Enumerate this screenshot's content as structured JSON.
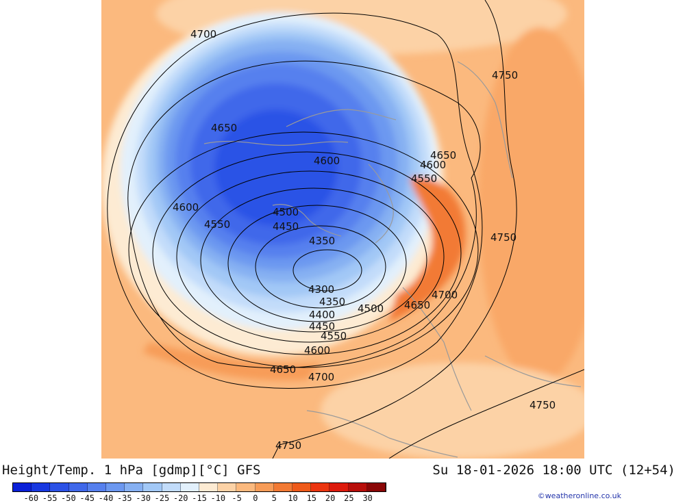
{
  "title": "Height/Temp. 1 hPa [gdmp][°C] GFS",
  "datetime": "Su 18-01-2026 18:00 UTC (12+54)",
  "credit": "©weatheronline.co.uk",
  "colorbar": {
    "ticks": [
      "-60",
      "-55",
      "-50",
      "-45",
      "-40",
      "-35",
      "-30",
      "-25",
      "-20",
      "-15",
      "-10",
      "-5",
      "0",
      "5",
      "10",
      "15",
      "20",
      "25",
      "30"
    ],
    "colors": [
      "#0a20d8",
      "#1838e0",
      "#2c52e6",
      "#4068ea",
      "#5680ee",
      "#6c98f0",
      "#86b0f2",
      "#a2c8f6",
      "#c2dcfa",
      "#e2f0fc",
      "#fdebd3",
      "#fcd2a6",
      "#fbb97e",
      "#f79c58",
      "#f27a34",
      "#ee5a1a",
      "#ec3510",
      "#dd1a0c",
      "#b80e0a",
      "#8a0606"
    ]
  },
  "contours": [
    {
      "value": "4300",
      "label": "4300"
    },
    {
      "value": "4350",
      "label": "4350"
    },
    {
      "value": "4400",
      "label": "4400"
    },
    {
      "value": "4450",
      "label": "4450"
    },
    {
      "value": "4500",
      "label": "4500"
    },
    {
      "value": "4550",
      "label": "4550"
    },
    {
      "value": "4600",
      "label": "4600"
    },
    {
      "value": "4650",
      "label": "4650"
    },
    {
      "value": "4700",
      "label": "4700"
    },
    {
      "value": "4750",
      "label": "4750"
    }
  ]
}
